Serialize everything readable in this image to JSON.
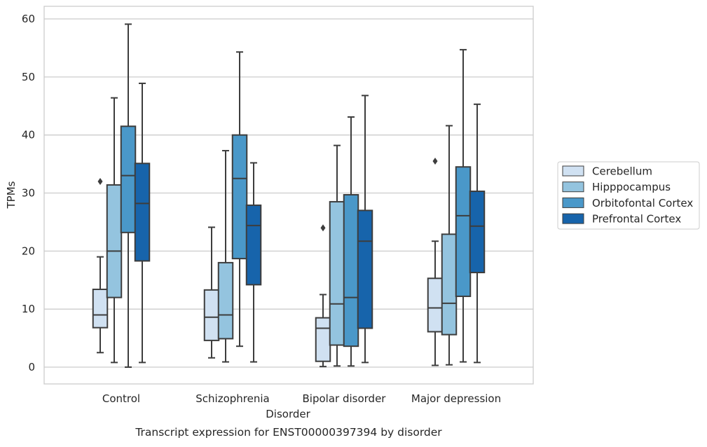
{
  "chart_data": {
    "type": "box",
    "caption": "Transcript expression for ENST00000397394 by disorder",
    "xlabel": "Disorder",
    "ylabel": "TPMs",
    "ylim": [
      -3,
      62.3
    ],
    "yticks": [
      0,
      10,
      20,
      30,
      40,
      50,
      60
    ],
    "grid": "horizontal",
    "legend_position": "right",
    "categories": [
      "Control",
      "Schizophrenia",
      "Bipolar disorder",
      "Major depression"
    ],
    "series": [
      {
        "name": "Cerebellum",
        "color": "#d0e1f2",
        "boxes": [
          {
            "whisker_low": 2.5,
            "q1": 6.8,
            "median": 9.0,
            "q3": 13.4,
            "whisker_high": 19.0,
            "outliers": [
              32.0
            ]
          },
          {
            "whisker_low": 1.6,
            "q1": 4.6,
            "median": 8.6,
            "q3": 13.3,
            "whisker_high": 24.1,
            "outliers": []
          },
          {
            "whisker_low": 0.1,
            "q1": 1.0,
            "median": 6.7,
            "q3": 8.5,
            "whisker_high": 12.5,
            "outliers": [
              24.0
            ]
          },
          {
            "whisker_low": 0.3,
            "q1": 6.1,
            "median": 10.2,
            "q3": 15.3,
            "whisker_high": 21.7,
            "outliers": [
              35.5
            ]
          }
        ]
      },
      {
        "name": "Hipppocampus",
        "color": "#94c4df",
        "boxes": [
          {
            "whisker_low": 0.8,
            "q1": 12.0,
            "median": 20.0,
            "q3": 31.4,
            "whisker_high": 46.4,
            "outliers": []
          },
          {
            "whisker_low": 0.9,
            "q1": 4.9,
            "median": 9.0,
            "q3": 18.0,
            "whisker_high": 37.3,
            "outliers": []
          },
          {
            "whisker_low": 0.2,
            "q1": 3.8,
            "median": 10.9,
            "q3": 28.5,
            "whisker_high": 38.2,
            "outliers": []
          },
          {
            "whisker_low": 0.4,
            "q1": 5.6,
            "median": 11.0,
            "q3": 22.9,
            "whisker_high": 41.6,
            "outliers": []
          }
        ]
      },
      {
        "name": "Orbitofontal Cortex",
        "color": "#4a98c9",
        "boxes": [
          {
            "whisker_low": 0.0,
            "q1": 23.2,
            "median": 33.0,
            "q3": 41.5,
            "whisker_high": 59.1,
            "outliers": []
          },
          {
            "whisker_low": 3.6,
            "q1": 18.7,
            "median": 32.5,
            "q3": 40.0,
            "whisker_high": 54.3,
            "outliers": []
          },
          {
            "whisker_low": 0.2,
            "q1": 3.6,
            "median": 12.0,
            "q3": 29.7,
            "whisker_high": 43.1,
            "outliers": []
          },
          {
            "whisker_low": 0.9,
            "q1": 12.2,
            "median": 26.1,
            "q3": 34.5,
            "whisker_high": 54.7,
            "outliers": []
          }
        ]
      },
      {
        "name": "Prefrontal Cortex",
        "color": "#1764ab",
        "boxes": [
          {
            "whisker_low": 0.8,
            "q1": 18.3,
            "median": 28.2,
            "q3": 35.1,
            "whisker_high": 48.9,
            "outliers": []
          },
          {
            "whisker_low": 0.9,
            "q1": 14.2,
            "median": 24.4,
            "q3": 27.9,
            "whisker_high": 35.2,
            "outliers": []
          },
          {
            "whisker_low": 0.8,
            "q1": 6.7,
            "median": 21.7,
            "q3": 27.0,
            "whisker_high": 46.8,
            "outliers": []
          },
          {
            "whisker_low": 0.8,
            "q1": 16.3,
            "median": 24.3,
            "q3": 30.3,
            "whisker_high": 45.3,
            "outliers": []
          }
        ]
      }
    ]
  }
}
